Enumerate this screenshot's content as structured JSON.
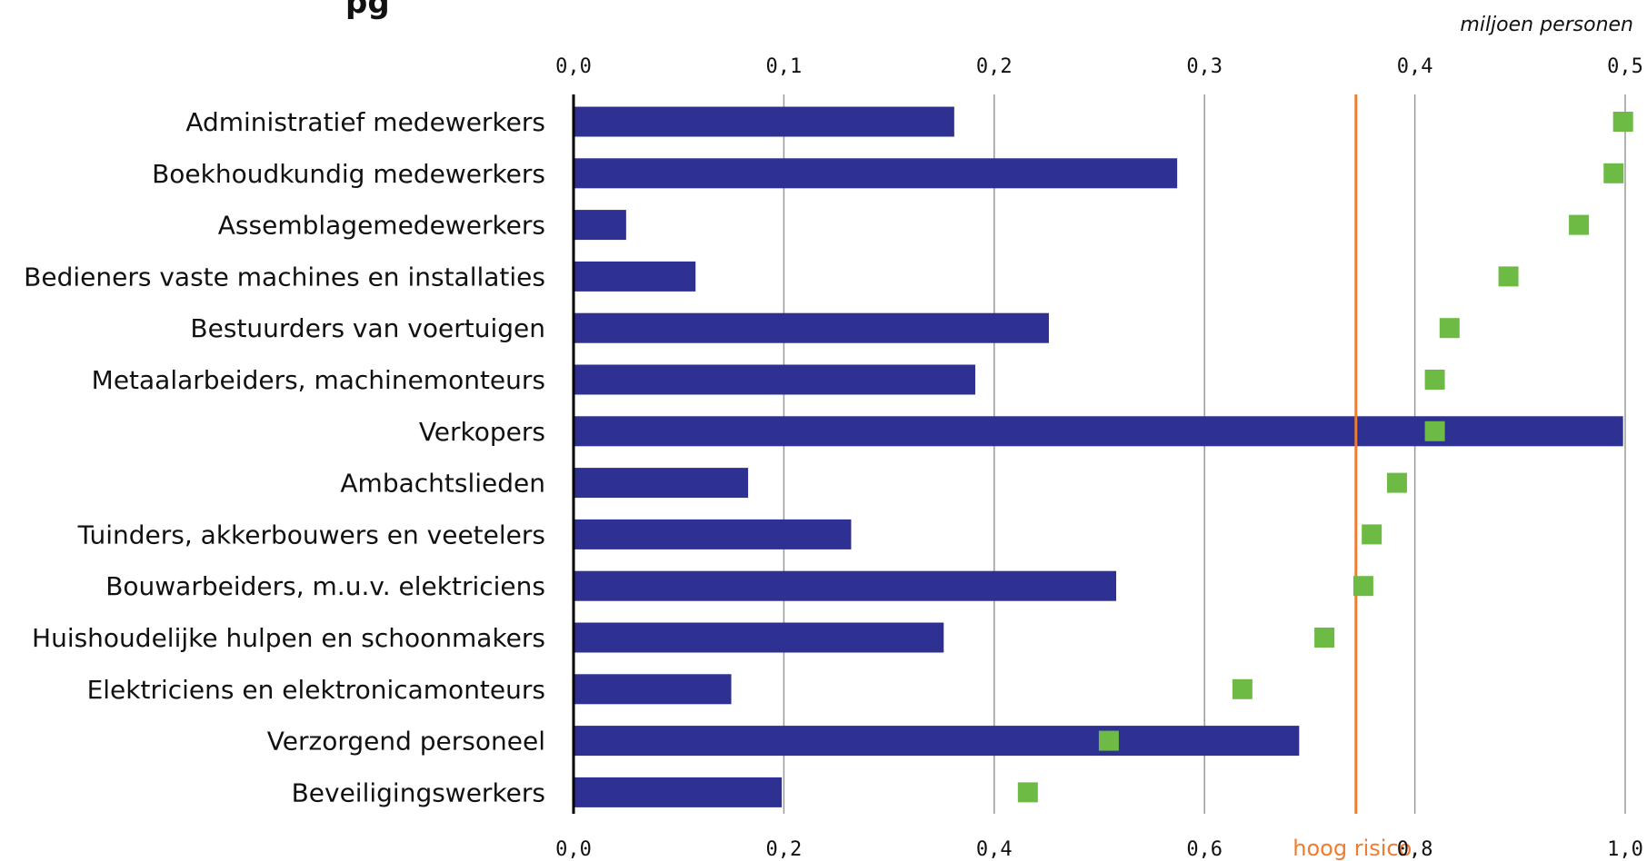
{
  "title_fragment": "pg",
  "colors": {
    "bar": "#2e3192",
    "marker": "#6dbb45",
    "risk_line": "#f07c30",
    "grid": "#999999",
    "axis": "#000000",
    "text": "#111111"
  },
  "chart_data": {
    "type": "bar",
    "orientation": "horizontal",
    "unit_label": "miljoen personen",
    "top_axis": {
      "range": [
        0,
        0.5
      ],
      "ticks": [
        0.0,
        0.1,
        0.2,
        0.3,
        0.4,
        0.5
      ],
      "tick_labels": [
        "0,0",
        "0,1",
        "0,2",
        "0,3",
        "0,4",
        "0,5"
      ]
    },
    "bottom_axis": {
      "range": [
        0,
        1.0
      ],
      "ticks": [
        0.0,
        0.2,
        0.4,
        0.6,
        0.8,
        1.0
      ],
      "tick_labels": [
        "0,0",
        "0,2",
        "0,4",
        "0,6",
        "0,8",
        "1,0"
      ]
    },
    "grid": true,
    "categories": [
      "Administratief medewerkers",
      "Boekhoudkundig medewerkers",
      "Assemblagemedewerkers",
      "Bedieners vaste machines en installaties",
      "Bestuurders van voertuigen",
      "Metaalarbeiders, machinemonteurs",
      "Verkopers",
      "Ambachtslieden",
      "Tuinders, akkerbouwers en veetelers",
      "Bouwarbeiders, m.u.v. elektriciens",
      "Huishoudelijke hulpen en schoonmakers",
      "Elektriciens en elektronicamonteurs",
      "Verzorgend personeel",
      "Beveiligingswerkers"
    ],
    "series": [
      {
        "axis": "top",
        "mark": "bar",
        "values": [
          0.181,
          0.287,
          0.025,
          0.058,
          0.226,
          0.191,
          0.499,
          0.083,
          0.132,
          0.258,
          0.176,
          0.075,
          0.345,
          0.099
        ]
      },
      {
        "axis": "bottom",
        "mark": "square",
        "values": [
          0.998,
          0.989,
          0.956,
          0.889,
          0.833,
          0.819,
          0.819,
          0.783,
          0.759,
          0.751,
          0.714,
          0.636,
          0.509,
          0.432
        ]
      }
    ],
    "reference_line": {
      "axis": "bottom",
      "value": 0.744,
      "label": "hoog risico"
    }
  }
}
